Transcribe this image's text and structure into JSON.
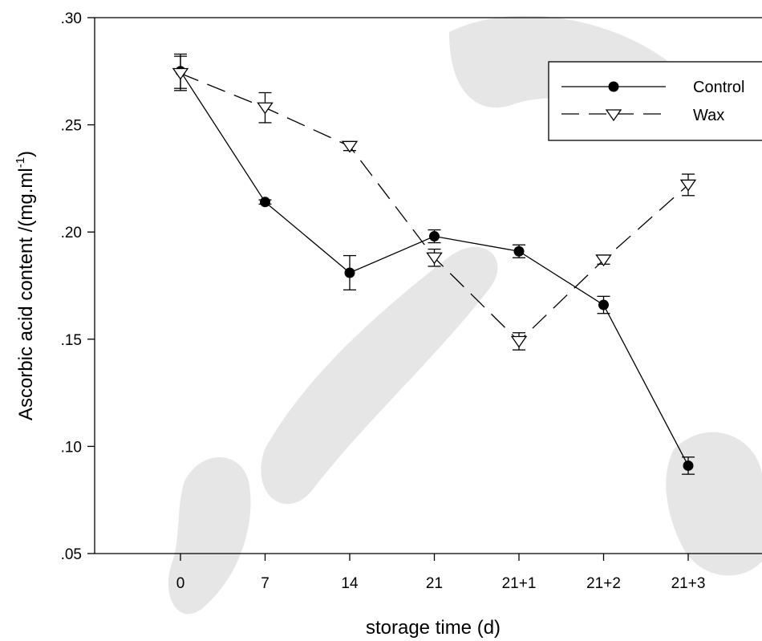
{
  "chart_data": {
    "type": "line",
    "title": "",
    "xlabel": "storage time (d)",
    "ylabel": "Ascorbic acid content /(mg.ml",
    "ylabel_sup": "-1",
    "ylabel_close": ")",
    "categories": [
      "0",
      "7",
      "14",
      "21",
      "21+1",
      "21+2",
      "21+3"
    ],
    "ylim": [
      0.05,
      0.3
    ],
    "yticks": [
      ".05",
      ".10",
      ".15",
      ".20",
      ".25",
      ".30"
    ],
    "ytick_values": [
      0.05,
      0.1,
      0.15,
      0.2,
      0.25,
      0.3
    ],
    "grid": false,
    "legend_position": "top-right",
    "series": [
      {
        "name": "Control",
        "marker": "filled-circle",
        "line_style": "solid",
        "values": [
          0.275,
          0.214,
          0.181,
          0.198,
          0.191,
          0.166,
          0.091
        ],
        "error": [
          0.008,
          0.001,
          0.008,
          0.003,
          0.003,
          0.004,
          0.004
        ]
      },
      {
        "name": "Wax",
        "marker": "open-triangle-down",
        "line_style": "dashed",
        "values": [
          0.274,
          0.258,
          0.24,
          0.188,
          0.149,
          0.187,
          0.222
        ],
        "error": [
          0.008,
          0.007,
          0.002,
          0.004,
          0.004,
          0.002,
          0.005
        ]
      }
    ]
  }
}
